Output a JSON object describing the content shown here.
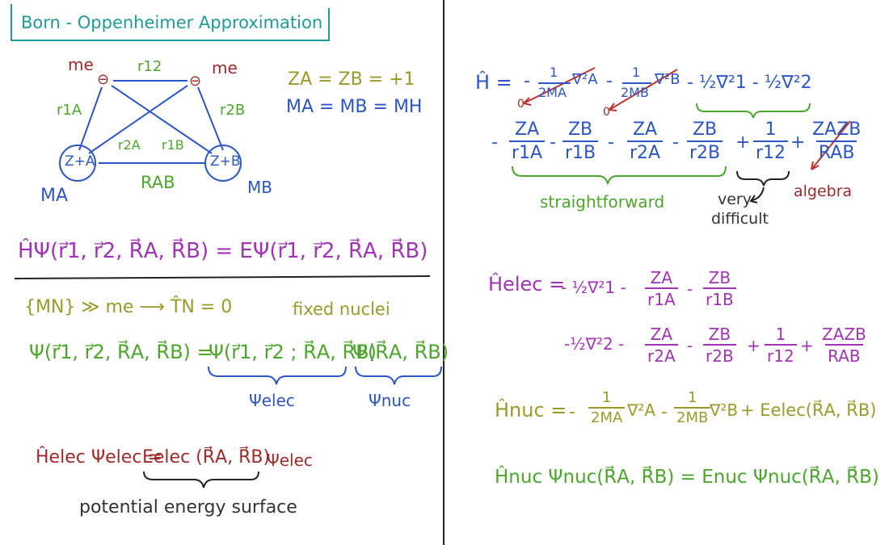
{
  "title": "Born - Oppenheimer Approximation",
  "diagram": {
    "me_left": "me",
    "me_right": "me",
    "r12": "r12",
    "r1A": "r1A",
    "r2B": "r2B",
    "r2A": "r2A",
    "r1B": "r1B",
    "RAB": "RAB",
    "ZA": "Z+A",
    "ZB": "Z+B",
    "MA": "MA",
    "MB": "MB",
    "minus": "⊖"
  },
  "charges_line": "ZA = ZB = +1",
  "masses_line": "MA = MB = MH",
  "schrodinger": "ĤΨ(r⃗1, r⃗2, R⃗A, R⃗B) = EΨ(r⃗1, r⃗2, R⃗A, R⃗B)",
  "mass_ratio_line": "{MN} ≫ me ⟶ T̂N = 0",
  "fixed_nuclei": "fixed nuclei",
  "separation": {
    "lhs": "Ψ(r⃗1, r⃗2, R⃗A, R⃗B) =",
    "elec_part": "Ψ(r⃗1, r⃗2 ; R⃗A, R⃗B)",
    "nuc_part": "Ψ(R⃗A, R⃗B)",
    "elec_label": "Ψelec",
    "nuc_label": "Ψnuc"
  },
  "elec_eq": {
    "lhs": "Ĥelec Ψelec =",
    "energy": "Eelec (R⃗A, R⃗B)",
    "rhs": "Ψelec",
    "caption": "potential energy surface"
  },
  "hamiltonian": {
    "H": "Ĥ =",
    "kin_a_num": "1",
    "kin_a_den": "2MA",
    "kin_a_op": "∇²A",
    "kin_b_num": "1",
    "kin_b_den": "2MB",
    "kin_b_op": "∇²B",
    "el_kin": "- ½∇²1 - ½∇²2",
    "zero_a": "0",
    "zero_b": "0",
    "zA": "ZA",
    "zB": "ZB",
    "r1A": "r1A",
    "r1B": "r1B",
    "r2A": "r2A",
    "r2B": "r2B",
    "one": "1",
    "r12": "r12",
    "zAzB": "ZAZB",
    "RAB": "RAB",
    "straightforward": "straightforward",
    "very_difficult_1": "very",
    "very_difficult_2": "difficult",
    "algebra": "algebra"
  },
  "h_elec": {
    "lhs": "Ĥelec =",
    "line1_kin": "- ½∇²1 -",
    "line2_kin": "-½∇²2 -"
  },
  "h_nuc": {
    "lhs": "Ĥnuc =",
    "a_num": "1",
    "a_den": "2MA",
    "a_op": "∇²A",
    "b_num": "1",
    "b_den": "2MB",
    "b_op": "∇²B",
    "tail": "+ Eelec(R⃗A, R⃗B)"
  },
  "nuc_eq": "Ĥnuc Ψnuc(R⃗A, R⃗B) = Enuc Ψnuc(R⃗A, R⃗B)",
  "colors": {
    "teal": "#1f9b96",
    "red": "#9e2a2a",
    "green": "#4ca62c",
    "blue": "#2c56c6",
    "olive": "#9a9a2a",
    "purple": "#a034b4",
    "dark": "#333333"
  }
}
